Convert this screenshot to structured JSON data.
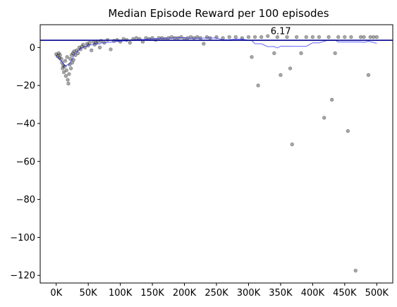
{
  "chart_data": {
    "type": "scatter",
    "title": "Median Episode Reward per 100 episodes",
    "xlabel": "",
    "ylabel": "",
    "xlim": [
      -25000,
      525000
    ],
    "ylim": [
      -124,
      12
    ],
    "x_ticks": [
      0,
      50000,
      100000,
      150000,
      200000,
      250000,
      300000,
      350000,
      400000,
      450000,
      500000
    ],
    "x_tick_labels": [
      "0K",
      "50K",
      "100K",
      "150K",
      "200K",
      "250K",
      "300K",
      "350K",
      "400K",
      "450K",
      "500K"
    ],
    "y_ticks": [
      0,
      -20,
      -40,
      -60,
      -80,
      -100,
      -120
    ],
    "y_tick_labels": [
      "0",
      "−20",
      "−40",
      "−60",
      "−80",
      "−100",
      "−120"
    ],
    "grid": false,
    "legend": "none",
    "point_color": "#000000",
    "point_opacity": 0.35,
    "trend_line_color": "#0000ff",
    "hline": {
      "y": 3.8,
      "color": "#00008b"
    },
    "annotation": {
      "text": "6.17",
      "x": 330000,
      "y": 6.17
    },
    "points": [
      [
        0,
        -3.5
      ],
      [
        2000,
        -4.5
      ],
      [
        4000,
        -3
      ],
      [
        5000,
        -5.5
      ],
      [
        6000,
        -4
      ],
      [
        8000,
        -6
      ],
      [
        9000,
        -8
      ],
      [
        10000,
        -11
      ],
      [
        11000,
        -9.5
      ],
      [
        12000,
        -13
      ],
      [
        13000,
        -10
      ],
      [
        14000,
        -7
      ],
      [
        15000,
        -15
      ],
      [
        16000,
        -12
      ],
      [
        17000,
        -5
      ],
      [
        18000,
        -17
      ],
      [
        19000,
        -19
      ],
      [
        20000,
        -14
      ],
      [
        21000,
        -9
      ],
      [
        22000,
        -6
      ],
      [
        23000,
        -11
      ],
      [
        24000,
        -4
      ],
      [
        25000,
        -8
      ],
      [
        26000,
        -3
      ],
      [
        27000,
        -6.5
      ],
      [
        28000,
        -2
      ],
      [
        30000,
        -4
      ],
      [
        32000,
        -1.5
      ],
      [
        34000,
        -3
      ],
      [
        36000,
        0
      ],
      [
        38000,
        -1
      ],
      [
        40000,
        0.5
      ],
      [
        42000,
        1.5
      ],
      [
        45000,
        0
      ],
      [
        48000,
        2
      ],
      [
        50000,
        1
      ],
      [
        52000,
        2.5
      ],
      [
        55000,
        -1.5
      ],
      [
        58000,
        3
      ],
      [
        60000,
        1.5
      ],
      [
        62000,
        2.5
      ],
      [
        65000,
        3
      ],
      [
        68000,
        0
      ],
      [
        70000,
        3.5
      ],
      [
        75000,
        2.5
      ],
      [
        80000,
        4
      ],
      [
        85000,
        -1
      ],
      [
        90000,
        3.5
      ],
      [
        95000,
        4
      ],
      [
        100000,
        3
      ],
      [
        105000,
        4.5
      ],
      [
        110000,
        4
      ],
      [
        115000,
        2.5
      ],
      [
        120000,
        4.5
      ],
      [
        125000,
        5
      ],
      [
        130000,
        4.5
      ],
      [
        135000,
        3
      ],
      [
        140000,
        5
      ],
      [
        145000,
        4.5
      ],
      [
        150000,
        5
      ],
      [
        155000,
        4
      ],
      [
        160000,
        5
      ],
      [
        165000,
        5
      ],
      [
        170000,
        4.5
      ],
      [
        175000,
        5
      ],
      [
        180000,
        5.5
      ],
      [
        185000,
        5
      ],
      [
        190000,
        5
      ],
      [
        195000,
        5.5
      ],
      [
        200000,
        4.5
      ],
      [
        205000,
        5
      ],
      [
        210000,
        5.5
      ],
      [
        215000,
        5
      ],
      [
        220000,
        5.5
      ],
      [
        225000,
        5
      ],
      [
        230000,
        2
      ],
      [
        235000,
        5.5
      ],
      [
        240000,
        5
      ],
      [
        250000,
        5.5
      ],
      [
        260000,
        5
      ],
      [
        270000,
        5.5
      ],
      [
        280000,
        5.5
      ],
      [
        290000,
        5
      ],
      [
        300000,
        5.5
      ],
      [
        305000,
        -5
      ],
      [
        310000,
        5.5
      ],
      [
        315000,
        -20
      ],
      [
        320000,
        5.5
      ],
      [
        330000,
        6
      ],
      [
        340000,
        -3
      ],
      [
        345000,
        5.5
      ],
      [
        350000,
        -14.5
      ],
      [
        360000,
        5.5
      ],
      [
        365000,
        -11
      ],
      [
        368000,
        -51
      ],
      [
        375000,
        5.5
      ],
      [
        382000,
        -3
      ],
      [
        390000,
        5.5
      ],
      [
        400000,
        5.5
      ],
      [
        410000,
        5.5
      ],
      [
        418000,
        -37
      ],
      [
        425000,
        5.5
      ],
      [
        430000,
        -27.5
      ],
      [
        435000,
        -3
      ],
      [
        440000,
        5.5
      ],
      [
        450000,
        5.5
      ],
      [
        455000,
        -44
      ],
      [
        460000,
        5.5
      ],
      [
        467000,
        -117.5
      ],
      [
        475000,
        5.5
      ],
      [
        480000,
        5.5
      ],
      [
        487000,
        -14.5
      ],
      [
        490000,
        5.5
      ],
      [
        495000,
        5.5
      ],
      [
        500000,
        5.5
      ]
    ]
  }
}
